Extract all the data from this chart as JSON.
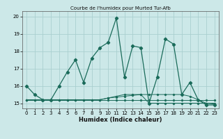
{
  "title": "Courbe de l'humidex pour Murted Tur-Afb",
  "xlabel": "Humidex (Indice chaleur)",
  "bg_color": "#cce8e8",
  "grid_color": "#aacfcf",
  "line_color": "#1a6b5a",
  "x_values": [
    0,
    1,
    2,
    3,
    4,
    5,
    6,
    7,
    8,
    9,
    10,
    11,
    12,
    13,
    14,
    15,
    16,
    17,
    18,
    19,
    20,
    21,
    22,
    23
  ],
  "main_y": [
    16.0,
    15.5,
    15.2,
    15.2,
    16.0,
    16.8,
    17.5,
    16.2,
    17.6,
    18.2,
    18.5,
    19.9,
    16.5,
    18.3,
    18.2,
    15.0,
    16.5,
    18.7,
    18.4,
    15.5,
    16.2,
    15.2,
    14.9,
    14.9
  ],
  "flat1_y": [
    15.2,
    15.2,
    15.2,
    15.2,
    15.2,
    15.2,
    15.2,
    15.2,
    15.2,
    15.2,
    15.2,
    15.2,
    15.2,
    15.2,
    15.2,
    15.2,
    15.2,
    15.2,
    15.2,
    15.2,
    15.2,
    15.2,
    15.2,
    15.2
  ],
  "flat2_y": [
    15.2,
    15.2,
    15.2,
    15.2,
    15.2,
    15.2,
    15.2,
    15.2,
    15.2,
    15.2,
    15.3,
    15.35,
    15.4,
    15.45,
    15.5,
    15.5,
    15.5,
    15.5,
    15.5,
    15.5,
    15.4,
    15.2,
    15.0,
    14.95
  ],
  "flat3_y": [
    15.2,
    15.2,
    15.2,
    15.2,
    15.2,
    15.2,
    15.2,
    15.2,
    15.2,
    15.2,
    15.3,
    15.4,
    15.5,
    15.5,
    15.5,
    15.0,
    15.0,
    15.0,
    15.0,
    15.0,
    15.0,
    15.0,
    15.0,
    15.0
  ],
  "xlim": [
    -0.5,
    23.5
  ],
  "ylim": [
    14.7,
    20.3
  ],
  "yticks": [
    15,
    16,
    17,
    18,
    19,
    20
  ],
  "xticks": [
    0,
    1,
    2,
    3,
    4,
    5,
    6,
    7,
    8,
    9,
    10,
    11,
    12,
    13,
    14,
    15,
    16,
    17,
    18,
    19,
    20,
    21,
    22,
    23
  ]
}
